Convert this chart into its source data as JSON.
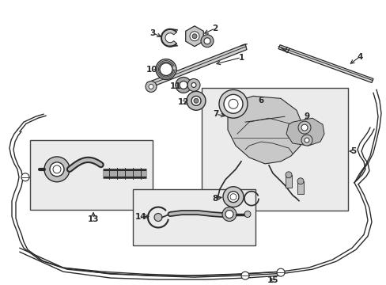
{
  "background_color": "#ffffff",
  "line_color": "#2a2a2a",
  "box_fill": "#ebebeb",
  "box_edge": "#444444",
  "fig_width": 4.89,
  "fig_height": 3.6,
  "dpi": 100
}
